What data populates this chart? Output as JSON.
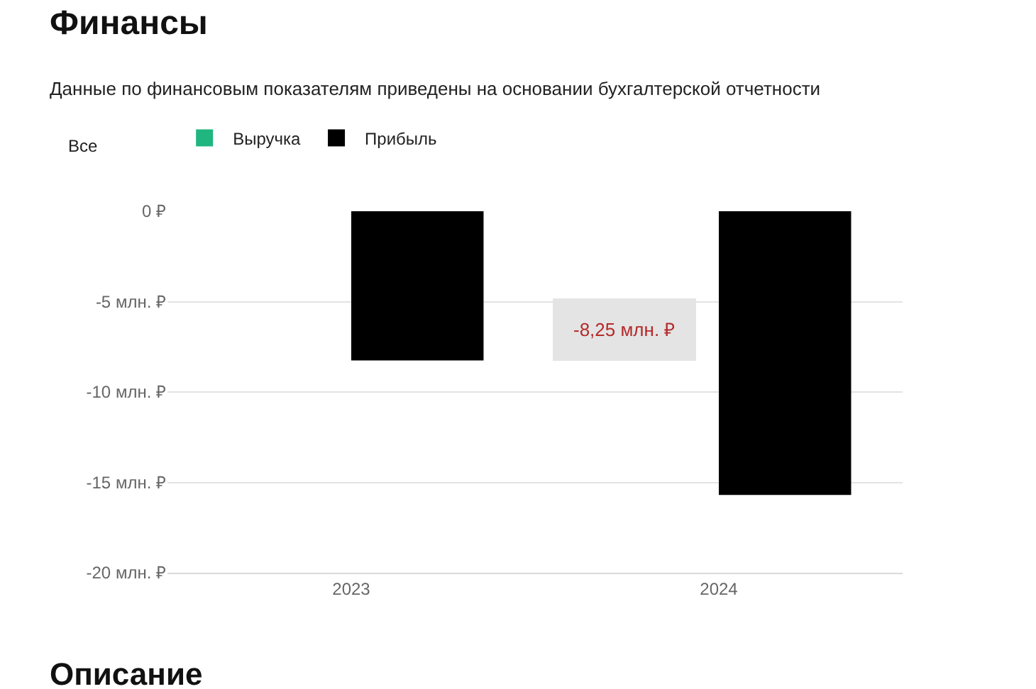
{
  "chart_data": {
    "type": "bar",
    "title": "Финансы",
    "subtitle": "Данные по финансовым показателям приведены на основании бухгалтерской отчетности",
    "categories": [
      "2023",
      "2024"
    ],
    "series": [
      {
        "name": "Выручка",
        "color": "#21b57f",
        "values": [
          null,
          null
        ]
      },
      {
        "name": "Прибыль",
        "color": "#000000",
        "values": [
          -8.25,
          -15.7
        ]
      }
    ],
    "ylim": [
      -20,
      0
    ],
    "yticks": [
      {
        "value": 0,
        "label": "0 ₽"
      },
      {
        "value": -5,
        "label": "-5 млн. ₽"
      },
      {
        "value": -10,
        "label": "-10 млн. ₽"
      },
      {
        "value": -15,
        "label": "-15 млн. ₽"
      },
      {
        "value": -20,
        "label": "-20 млн. ₽"
      }
    ],
    "grid": "y",
    "legend": "top left",
    "annotations": [
      "Все",
      "-8,25 млн. ₽",
      "Описание"
    ]
  }
}
